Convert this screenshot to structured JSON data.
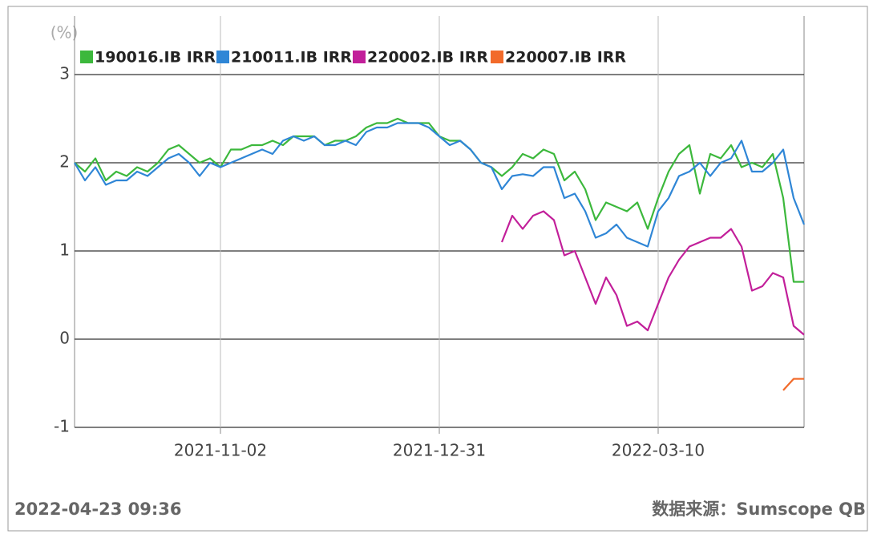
{
  "chart_data": {
    "type": "line",
    "y_label": "(%)",
    "timestamp": "2022-04-23 09:36",
    "source": "数据来源：Sumscope QB",
    "legend": "top-left",
    "grid": true,
    "ylim": [
      -1,
      3
    ],
    "yticks": [
      -1,
      0,
      1,
      2,
      3
    ],
    "categories": [
      null,
      null,
      null,
      null,
      null,
      null,
      null,
      null,
      null,
      null,
      null,
      null,
      null,
      null,
      "2021-11-02",
      null,
      null,
      null,
      null,
      null,
      null,
      null,
      null,
      null,
      null,
      null,
      null,
      null,
      null,
      null,
      null,
      null,
      null,
      null,
      null,
      "2021-12-31",
      null,
      null,
      null,
      null,
      null,
      null,
      null,
      null,
      null,
      null,
      null,
      null,
      null,
      null,
      null,
      null,
      null,
      null,
      null,
      null,
      "2022-03-10",
      null,
      null,
      null,
      null,
      null,
      null,
      null,
      null,
      null,
      null,
      null,
      null,
      null,
      null
    ],
    "series": [
      {
        "name": "190016.IB IRR",
        "color": "#3cb83c",
        "values": [
          2.0,
          1.9,
          2.05,
          1.8,
          1.9,
          1.85,
          1.95,
          1.9,
          2.0,
          2.15,
          2.2,
          2.1,
          2.0,
          2.05,
          1.95,
          2.15,
          2.15,
          2.2,
          2.2,
          2.25,
          2.2,
          2.3,
          2.3,
          2.3,
          2.2,
          2.25,
          2.25,
          2.3,
          2.4,
          2.45,
          2.45,
          2.5,
          2.45,
          2.45,
          2.45,
          2.3,
          2.25,
          2.25,
          2.15,
          2.0,
          1.95,
          1.85,
          1.95,
          2.1,
          2.05,
          2.15,
          2.1,
          1.8,
          1.9,
          1.7,
          1.35,
          1.55,
          1.5,
          1.45,
          1.55,
          1.25,
          1.6,
          1.9,
          2.1,
          2.2,
          1.65,
          2.1,
          2.05,
          2.2,
          1.95,
          2.0,
          1.95,
          2.1,
          1.6,
          0.65,
          0.65
        ]
      },
      {
        "name": "210011.IB IRR",
        "color": "#2f86d6",
        "values": [
          2.0,
          1.8,
          1.95,
          1.75,
          1.8,
          1.8,
          1.9,
          1.85,
          1.95,
          2.05,
          2.1,
          2.0,
          1.85,
          2.0,
          1.95,
          2.0,
          2.05,
          2.1,
          2.15,
          2.1,
          2.25,
          2.3,
          2.25,
          2.3,
          2.2,
          2.2,
          2.25,
          2.2,
          2.35,
          2.4,
          2.4,
          2.45,
          2.45,
          2.45,
          2.4,
          2.3,
          2.2,
          2.25,
          2.15,
          2.0,
          1.95,
          1.7,
          1.85,
          1.87,
          1.85,
          1.95,
          1.95,
          1.6,
          1.65,
          1.45,
          1.15,
          1.2,
          1.3,
          1.15,
          1.1,
          1.05,
          1.45,
          1.6,
          1.85,
          1.9,
          2.0,
          1.85,
          2.0,
          2.05,
          2.25,
          1.9,
          1.9,
          2.0,
          2.15,
          1.6,
          1.3
        ]
      },
      {
        "name": "220002.IB IRR",
        "color": "#c21f9a",
        "values": [
          null,
          null,
          null,
          null,
          null,
          null,
          null,
          null,
          null,
          null,
          null,
          null,
          null,
          null,
          null,
          null,
          null,
          null,
          null,
          null,
          null,
          null,
          null,
          null,
          null,
          null,
          null,
          null,
          null,
          null,
          null,
          null,
          null,
          null,
          null,
          null,
          null,
          null,
          null,
          null,
          null,
          1.1,
          1.4,
          1.25,
          1.4,
          1.45,
          1.35,
          0.95,
          1.0,
          0.7,
          0.4,
          0.7,
          0.5,
          0.15,
          0.2,
          0.1,
          0.4,
          0.7,
          0.9,
          1.05,
          1.1,
          1.15,
          1.15,
          1.25,
          1.05,
          0.55,
          0.6,
          0.75,
          0.7,
          0.15,
          0.05
        ]
      },
      {
        "name": "220007.IB IRR",
        "color": "#f26a2a",
        "values": [
          null,
          null,
          null,
          null,
          null,
          null,
          null,
          null,
          null,
          null,
          null,
          null,
          null,
          null,
          null,
          null,
          null,
          null,
          null,
          null,
          null,
          null,
          null,
          null,
          null,
          null,
          null,
          null,
          null,
          null,
          null,
          null,
          null,
          null,
          null,
          null,
          null,
          null,
          null,
          null,
          null,
          null,
          null,
          null,
          null,
          null,
          null,
          null,
          null,
          null,
          null,
          null,
          null,
          null,
          null,
          null,
          null,
          null,
          null,
          null,
          null,
          null,
          null,
          null,
          null,
          null,
          null,
          null,
          -0.58,
          -0.45,
          -0.45
        ]
      }
    ]
  }
}
